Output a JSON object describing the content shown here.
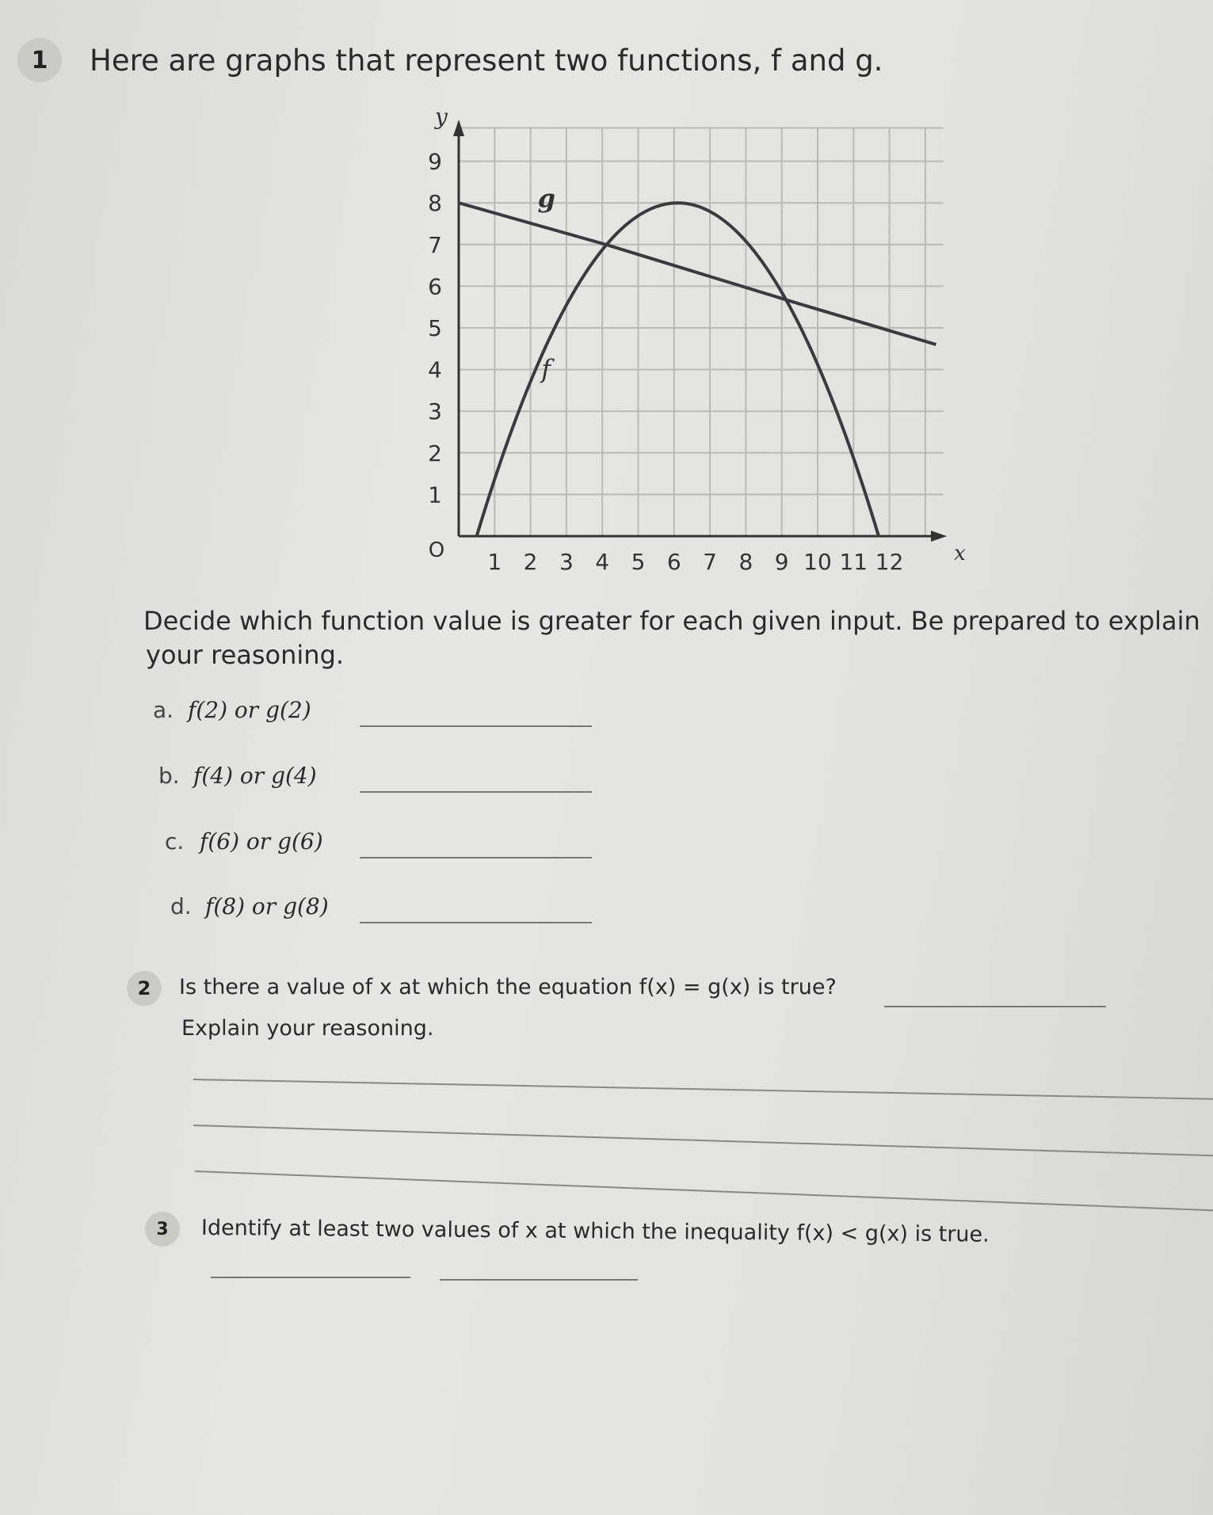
{
  "q1": {
    "number": "1",
    "title": "Here are graphs that represent two functions, f and g.",
    "instruction_line1": "Decide which function value is greater for each given input. Be prepared to explain",
    "instruction_line2": "your reasoning.",
    "items": [
      {
        "label": "a.",
        "text": "f(2) or g(2)"
      },
      {
        "label": "b.",
        "text": "f(4) or g(4)"
      },
      {
        "label": "c.",
        "text": "f(6) or g(6)"
      },
      {
        "label": "d.",
        "text": "f(8) or g(8)"
      }
    ]
  },
  "q2": {
    "number": "2",
    "text": "Is there a value of x at which the equation f(x) = g(x) is true?",
    "explain": "Explain your reasoning."
  },
  "q3": {
    "number": "3",
    "text": "Identify at least two values of x at which the inequality f(x) < g(x) is true."
  },
  "chart_data": {
    "type": "line",
    "xlabel": "x",
    "ylabel": "y",
    "origin_label": "O",
    "x_ticks": [
      "1",
      "2",
      "3",
      "4",
      "5",
      "6",
      "7",
      "8",
      "9",
      "10",
      "11",
      "12"
    ],
    "y_ticks": [
      "1",
      "2",
      "3",
      "4",
      "5",
      "6",
      "7",
      "8",
      "9"
    ],
    "xlim": [
      0,
      13.5
    ],
    "ylim": [
      0,
      9.8
    ],
    "grid": true,
    "series": [
      {
        "name": "f",
        "shape": "downward parabola",
        "x": [
          0.5,
          1,
          2,
          3,
          4,
          5,
          6,
          6.2,
          7,
          8,
          9,
          10,
          11,
          11.7
        ],
        "y": [
          0,
          1.3,
          3.6,
          5.4,
          6.8,
          7.6,
          8.0,
          8.0,
          7.8,
          7.1,
          6.0,
          4.4,
          2.4,
          0
        ]
      },
      {
        "name": "g",
        "shape": "line",
        "x": [
          0,
          4.1,
          9.4,
          13.3
        ],
        "y": [
          8,
          7.0,
          5.6,
          4.6
        ]
      }
    ],
    "intersections": [
      [
        4.1,
        7.0
      ],
      [
        9.4,
        5.6
      ]
    ],
    "line_color": "#3a3a40",
    "grid_color": "#b9bab6"
  }
}
